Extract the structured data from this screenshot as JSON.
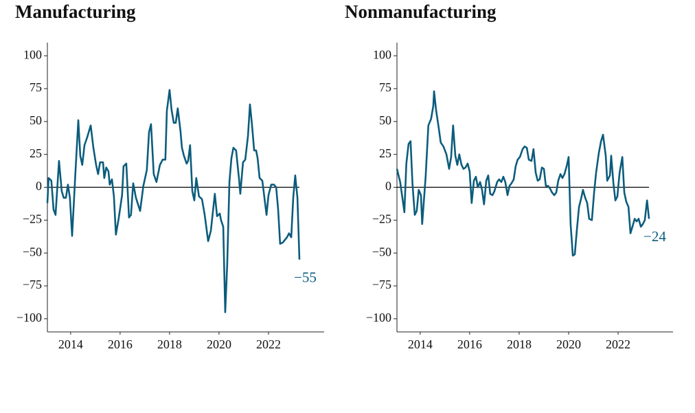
{
  "chart_data": [
    {
      "type": "line",
      "title": "Manufacturing",
      "color": "#0b5c7c",
      "xlim": [
        2013.06,
        2024.25
      ],
      "ylim": [
        -110,
        110
      ],
      "xticks": [
        2014,
        2016,
        2018,
        2020,
        2022
      ],
      "yticks": [
        {
          "value": 100,
          "label": "100"
        },
        {
          "value": 75,
          "label": "75"
        },
        {
          "value": 50,
          "label": "50"
        },
        {
          "value": 25,
          "label": "25"
        },
        {
          "value": 0,
          "label": "0"
        },
        {
          "value": -25,
          "label": "−25"
        },
        {
          "value": -50,
          "label": "−50"
        },
        {
          "value": -75,
          "label": "−75"
        },
        {
          "value": -100,
          "label": "−100"
        }
      ],
      "x": [
        2013.06,
        2013.11,
        2013.22,
        2013.31,
        2013.39,
        2013.53,
        2013.64,
        2013.72,
        2013.81,
        2013.89,
        2013.97,
        2014.06,
        2014.19,
        2014.31,
        2014.39,
        2014.47,
        2014.56,
        2014.67,
        2014.81,
        2014.92,
        2015.03,
        2015.11,
        2015.19,
        2015.31,
        2015.36,
        2015.44,
        2015.53,
        2015.58,
        2015.67,
        2015.75,
        2015.83,
        2015.94,
        2016.08,
        2016.14,
        2016.25,
        2016.36,
        2016.44,
        2016.53,
        2016.64,
        2016.81,
        2016.94,
        2017.08,
        2017.17,
        2017.25,
        2017.36,
        2017.47,
        2017.61,
        2017.72,
        2017.83,
        2017.89,
        2018.0,
        2018.08,
        2018.17,
        2018.25,
        2018.33,
        2018.44,
        2018.5,
        2018.58,
        2018.69,
        2018.75,
        2018.83,
        2018.92,
        2019.0,
        2019.08,
        2019.19,
        2019.31,
        2019.42,
        2019.56,
        2019.67,
        2019.83,
        2019.92,
        2020.03,
        2020.08,
        2020.17,
        2020.25,
        2020.33,
        2020.42,
        2020.5,
        2020.58,
        2020.69,
        2020.81,
        2020.86,
        2020.97,
        2021.06,
        2021.17,
        2021.25,
        2021.33,
        2021.42,
        2021.5,
        2021.56,
        2021.64,
        2021.75,
        2021.92,
        2022.0,
        2022.11,
        2022.22,
        2022.31,
        2022.39,
        2022.47,
        2022.58,
        2022.75,
        2022.83,
        2022.92,
        2023.0,
        2023.08,
        2023.17,
        2023.25
      ],
      "values": [
        -12,
        7,
        5,
        -17,
        -21,
        20,
        -3,
        -8,
        -8,
        2,
        -8,
        -37,
        10,
        51,
        24,
        17,
        32,
        38,
        47,
        30,
        17,
        10,
        19,
        19,
        7,
        15,
        12,
        2,
        6,
        -7,
        -36,
        -24,
        -6,
        16,
        18,
        -23,
        -21,
        3,
        -8,
        -18,
        1,
        13,
        42,
        48,
        10,
        4,
        17,
        21,
        21,
        58,
        74,
        59,
        49,
        49,
        60,
        43,
        30,
        24,
        18,
        20,
        32,
        -3,
        -10,
        7,
        -7,
        -9,
        -21,
        -41,
        -33,
        -5,
        -22,
        -20,
        -25,
        -30,
        -95,
        -59,
        4,
        22,
        30,
        28,
        6,
        -5,
        19,
        21,
        39,
        63,
        48,
        28,
        28,
        22,
        7,
        5,
        -21,
        -6,
        2,
        2,
        0,
        -17,
        -43,
        -42,
        -38,
        -35,
        -38,
        -8,
        9,
        -8,
        -55
      ],
      "annotations": [
        {
          "text": "−55"
        }
      ]
    },
    {
      "type": "line",
      "title": "Nonmanufacturing",
      "color": "#0b5c7c",
      "xlim": [
        2013.06,
        2024.22
      ],
      "ylim": [
        -110,
        110
      ],
      "xticks": [
        2014,
        2016,
        2018,
        2020,
        2022
      ],
      "yticks": [
        {
          "value": 100,
          "label": "100"
        },
        {
          "value": 75,
          "label": "75"
        },
        {
          "value": 50,
          "label": "50"
        },
        {
          "value": 25,
          "label": "25"
        },
        {
          "value": 0,
          "label": "0"
        },
        {
          "value": -25,
          "label": "−25"
        },
        {
          "value": -50,
          "label": "−50"
        },
        {
          "value": -75,
          "label": "−75"
        },
        {
          "value": -100,
          "label": "−100"
        }
      ],
      "x": [
        2013.06,
        2013.19,
        2013.28,
        2013.36,
        2013.44,
        2013.53,
        2013.61,
        2013.69,
        2013.78,
        2013.86,
        2013.94,
        2014.03,
        2014.08,
        2014.22,
        2014.33,
        2014.44,
        2014.53,
        2014.56,
        2014.64,
        2014.75,
        2014.83,
        2014.94,
        2015.06,
        2015.17,
        2015.25,
        2015.33,
        2015.42,
        2015.5,
        2015.58,
        2015.67,
        2015.75,
        2015.83,
        2015.92,
        2016.0,
        2016.08,
        2016.17,
        2016.25,
        2016.33,
        2016.42,
        2016.5,
        2016.58,
        2016.67,
        2016.75,
        2016.83,
        2016.92,
        2017.0,
        2017.11,
        2017.19,
        2017.28,
        2017.36,
        2017.44,
        2017.53,
        2017.61,
        2017.69,
        2017.78,
        2017.86,
        2017.94,
        2018.03,
        2018.14,
        2018.22,
        2018.31,
        2018.39,
        2018.5,
        2018.58,
        2018.67,
        2018.75,
        2018.83,
        2018.92,
        2019.0,
        2019.08,
        2019.17,
        2019.25,
        2019.33,
        2019.42,
        2019.5,
        2019.58,
        2019.67,
        2019.75,
        2019.83,
        2019.92,
        2020.0,
        2020.08,
        2020.17,
        2020.25,
        2020.33,
        2020.42,
        2020.5,
        2020.58,
        2020.67,
        2020.75,
        2020.83,
        2020.94,
        2021.03,
        2021.11,
        2021.22,
        2021.31,
        2021.39,
        2021.5,
        2021.56,
        2021.67,
        2021.72,
        2021.81,
        2021.89,
        2021.97,
        2022.06,
        2022.17,
        2022.25,
        2022.33,
        2022.42,
        2022.5,
        2022.58,
        2022.67,
        2022.75,
        2022.83,
        2022.92,
        2023.0,
        2023.08,
        2023.17,
        2023.25
      ],
      "values": [
        14,
        4,
        -8,
        -19,
        18,
        33,
        35,
        2,
        -21,
        -18,
        -2,
        -6,
        -28,
        8,
        47,
        52,
        62,
        73,
        59,
        45,
        34,
        31,
        25,
        14,
        23,
        47,
        24,
        17,
        25,
        17,
        14,
        15,
        18,
        12,
        -12,
        5,
        8,
        0,
        4,
        -2,
        -13,
        5,
        9,
        -5,
        -6,
        -3,
        4,
        6,
        4,
        8,
        4,
        -6,
        1,
        3,
        6,
        16,
        21,
        23,
        29,
        31,
        30,
        21,
        20,
        29,
        11,
        5,
        6,
        15,
        14,
        1,
        1,
        -1,
        -4,
        -6,
        -4,
        5,
        10,
        7,
        10,
        16,
        23,
        -28,
        -52,
        -51,
        -33,
        -15,
        -9,
        -2,
        -8,
        -12,
        -24,
        -25,
        -4,
        11,
        26,
        35,
        40,
        24,
        5,
        9,
        24,
        3,
        -10,
        -7,
        11,
        23,
        -4,
        -11,
        -15,
        -35,
        -30,
        -24,
        -26,
        -24,
        -30,
        -28,
        -25,
        -10,
        -24
      ],
      "annotations": [
        {
          "text": "−24"
        }
      ]
    }
  ]
}
